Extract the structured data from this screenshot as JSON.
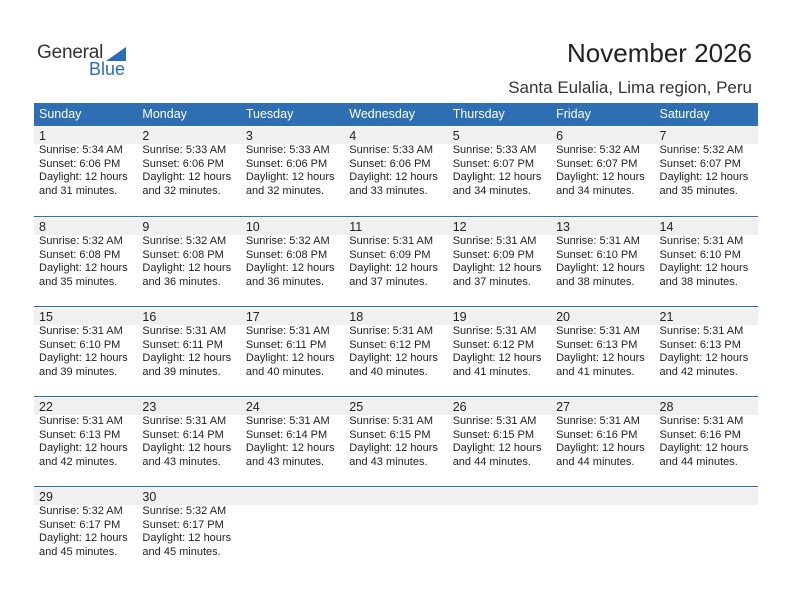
{
  "logo": {
    "general": "General",
    "blue": "Blue"
  },
  "title": "November 2026",
  "subtitle": "Santa Eulalia, Lima region, Peru",
  "colors": {
    "header_bg": "#2e6fb3",
    "day_band": "#f0f0f0",
    "brand_blue": "#2a6db5"
  },
  "weekdays": [
    "Sunday",
    "Monday",
    "Tuesday",
    "Wednesday",
    "Thursday",
    "Friday",
    "Saturday"
  ],
  "weeks": [
    [
      {
        "day": "1",
        "sunrise": "Sunrise: 5:34 AM",
        "sunset": "Sunset: 6:06 PM",
        "daylight": "Daylight: 12 hours and 31 minutes."
      },
      {
        "day": "2",
        "sunrise": "Sunrise: 5:33 AM",
        "sunset": "Sunset: 6:06 PM",
        "daylight": "Daylight: 12 hours and 32 minutes."
      },
      {
        "day": "3",
        "sunrise": "Sunrise: 5:33 AM",
        "sunset": "Sunset: 6:06 PM",
        "daylight": "Daylight: 12 hours and 32 minutes."
      },
      {
        "day": "4",
        "sunrise": "Sunrise: 5:33 AM",
        "sunset": "Sunset: 6:06 PM",
        "daylight": "Daylight: 12 hours and 33 minutes."
      },
      {
        "day": "5",
        "sunrise": "Sunrise: 5:33 AM",
        "sunset": "Sunset: 6:07 PM",
        "daylight": "Daylight: 12 hours and 34 minutes."
      },
      {
        "day": "6",
        "sunrise": "Sunrise: 5:32 AM",
        "sunset": "Sunset: 6:07 PM",
        "daylight": "Daylight: 12 hours and 34 minutes."
      },
      {
        "day": "7",
        "sunrise": "Sunrise: 5:32 AM",
        "sunset": "Sunset: 6:07 PM",
        "daylight": "Daylight: 12 hours and 35 minutes."
      }
    ],
    [
      {
        "day": "8",
        "sunrise": "Sunrise: 5:32 AM",
        "sunset": "Sunset: 6:08 PM",
        "daylight": "Daylight: 12 hours and 35 minutes."
      },
      {
        "day": "9",
        "sunrise": "Sunrise: 5:32 AM",
        "sunset": "Sunset: 6:08 PM",
        "daylight": "Daylight: 12 hours and 36 minutes."
      },
      {
        "day": "10",
        "sunrise": "Sunrise: 5:32 AM",
        "sunset": "Sunset: 6:08 PM",
        "daylight": "Daylight: 12 hours and 36 minutes."
      },
      {
        "day": "11",
        "sunrise": "Sunrise: 5:31 AM",
        "sunset": "Sunset: 6:09 PM",
        "daylight": "Daylight: 12 hours and 37 minutes."
      },
      {
        "day": "12",
        "sunrise": "Sunrise: 5:31 AM",
        "sunset": "Sunset: 6:09 PM",
        "daylight": "Daylight: 12 hours and 37 minutes."
      },
      {
        "day": "13",
        "sunrise": "Sunrise: 5:31 AM",
        "sunset": "Sunset: 6:10 PM",
        "daylight": "Daylight: 12 hours and 38 minutes."
      },
      {
        "day": "14",
        "sunrise": "Sunrise: 5:31 AM",
        "sunset": "Sunset: 6:10 PM",
        "daylight": "Daylight: 12 hours and 38 minutes."
      }
    ],
    [
      {
        "day": "15",
        "sunrise": "Sunrise: 5:31 AM",
        "sunset": "Sunset: 6:10 PM",
        "daylight": "Daylight: 12 hours and 39 minutes."
      },
      {
        "day": "16",
        "sunrise": "Sunrise: 5:31 AM",
        "sunset": "Sunset: 6:11 PM",
        "daylight": "Daylight: 12 hours and 39 minutes."
      },
      {
        "day": "17",
        "sunrise": "Sunrise: 5:31 AM",
        "sunset": "Sunset: 6:11 PM",
        "daylight": "Daylight: 12 hours and 40 minutes."
      },
      {
        "day": "18",
        "sunrise": "Sunrise: 5:31 AM",
        "sunset": "Sunset: 6:12 PM",
        "daylight": "Daylight: 12 hours and 40 minutes."
      },
      {
        "day": "19",
        "sunrise": "Sunrise: 5:31 AM",
        "sunset": "Sunset: 6:12 PM",
        "daylight": "Daylight: 12 hours and 41 minutes."
      },
      {
        "day": "20",
        "sunrise": "Sunrise: 5:31 AM",
        "sunset": "Sunset: 6:13 PM",
        "daylight": "Daylight: 12 hours and 41 minutes."
      },
      {
        "day": "21",
        "sunrise": "Sunrise: 5:31 AM",
        "sunset": "Sunset: 6:13 PM",
        "daylight": "Daylight: 12 hours and 42 minutes."
      }
    ],
    [
      {
        "day": "22",
        "sunrise": "Sunrise: 5:31 AM",
        "sunset": "Sunset: 6:13 PM",
        "daylight": "Daylight: 12 hours and 42 minutes."
      },
      {
        "day": "23",
        "sunrise": "Sunrise: 5:31 AM",
        "sunset": "Sunset: 6:14 PM",
        "daylight": "Daylight: 12 hours and 43 minutes."
      },
      {
        "day": "24",
        "sunrise": "Sunrise: 5:31 AM",
        "sunset": "Sunset: 6:14 PM",
        "daylight": "Daylight: 12 hours and 43 minutes."
      },
      {
        "day": "25",
        "sunrise": "Sunrise: 5:31 AM",
        "sunset": "Sunset: 6:15 PM",
        "daylight": "Daylight: 12 hours and 43 minutes."
      },
      {
        "day": "26",
        "sunrise": "Sunrise: 5:31 AM",
        "sunset": "Sunset: 6:15 PM",
        "daylight": "Daylight: 12 hours and 44 minutes."
      },
      {
        "day": "27",
        "sunrise": "Sunrise: 5:31 AM",
        "sunset": "Sunset: 6:16 PM",
        "daylight": "Daylight: 12 hours and 44 minutes."
      },
      {
        "day": "28",
        "sunrise": "Sunrise: 5:31 AM",
        "sunset": "Sunset: 6:16 PM",
        "daylight": "Daylight: 12 hours and 44 minutes."
      }
    ],
    [
      {
        "day": "29",
        "sunrise": "Sunrise: 5:32 AM",
        "sunset": "Sunset: 6:17 PM",
        "daylight": "Daylight: 12 hours and 45 minutes."
      },
      {
        "day": "30",
        "sunrise": "Sunrise: 5:32 AM",
        "sunset": "Sunset: 6:17 PM",
        "daylight": "Daylight: 12 hours and 45 minutes."
      }
    ]
  ]
}
